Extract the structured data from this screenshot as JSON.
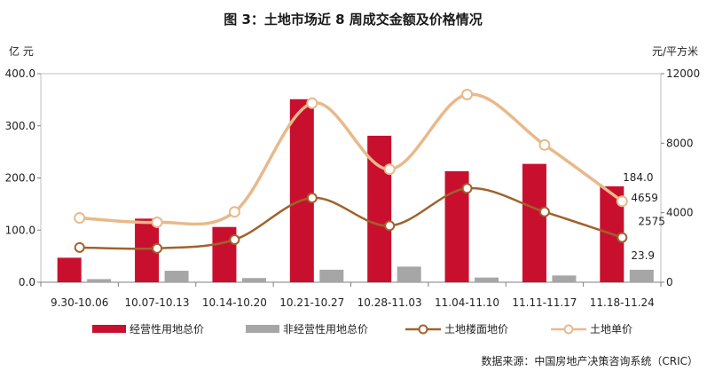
{
  "chart_data": {
    "type": "bar",
    "title": "图 3：土地市场近 8 周成交金额及价格情况",
    "categories": [
      "9.30-10.06",
      "10.07-10.13",
      "10.14-10.20",
      "10.21-10.27",
      "10.28-11.03",
      "11.04-11.10",
      "11.11-11.17",
      "11.18-11.24"
    ],
    "left_axis": {
      "unit": "亿 元",
      "ylim": [
        0,
        400
      ],
      "ticks": [
        "0.0",
        "100.0",
        "200.0",
        "300.0",
        "400.0"
      ],
      "tick_values": [
        0,
        100,
        200,
        300,
        400
      ]
    },
    "right_axis": {
      "unit": "元/平方米",
      "ylim": [
        0,
        12000
      ],
      "ticks": [
        "0",
        "4000",
        "8000",
        "12000"
      ],
      "tick_values": [
        0,
        4000,
        8000,
        12000
      ]
    },
    "series": [
      {
        "name": "经营性用地总价",
        "kind": "bar",
        "axis": "left",
        "color": "#C8102E",
        "values": [
          47,
          122,
          106,
          351,
          281,
          213,
          227,
          184.0
        ]
      },
      {
        "name": "非经营性用地总价",
        "kind": "bar",
        "axis": "left",
        "color": "#A6A6A6",
        "values": [
          6,
          22,
          8,
          24,
          30,
          9,
          13,
          23.9
        ]
      },
      {
        "name": "土地楼面地价",
        "kind": "line",
        "axis": "right",
        "color": "#A0622D",
        "values": [
          2000,
          1950,
          2450,
          4850,
          3250,
          5400,
          4050,
          2575
        ]
      },
      {
        "name": "土地单价",
        "kind": "line",
        "axis": "right",
        "color": "#E8B98A",
        "values": [
          3700,
          3450,
          4050,
          10300,
          6500,
          10800,
          7900,
          4659
        ]
      }
    ],
    "annotations": [
      {
        "series_index": 0,
        "point": 7,
        "text": "184.0"
      },
      {
        "series_index": 1,
        "point": 7,
        "text": "23.9"
      },
      {
        "series_index": 2,
        "point": 7,
        "text": "2575"
      },
      {
        "series_index": 3,
        "point": 7,
        "text": "4659"
      }
    ],
    "legend_position": "bottom",
    "grid": false
  },
  "source": "数据来源：中国房地产决策咨询系统（CRIC）"
}
